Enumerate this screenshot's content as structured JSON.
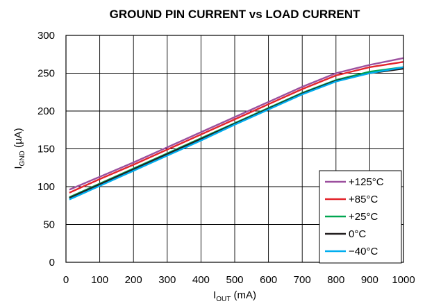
{
  "chart_data": {
    "type": "line",
    "title": "GROUND PIN CURRENT vs LOAD CURRENT",
    "xlabel": {
      "main": "I",
      "sub": "OUT",
      "unit": " (mA)"
    },
    "ylabel": {
      "main": "I",
      "sub": "GND",
      "unit": " (µA)"
    },
    "xlim": [
      0,
      1000
    ],
    "ylim": [
      0,
      300
    ],
    "xticks": [
      "0",
      "100",
      "200",
      "300",
      "400",
      "500",
      "600",
      "700",
      "800",
      "900",
      "1000"
    ],
    "yticks": [
      "0",
      "50",
      "100",
      "150",
      "200",
      "250",
      "300"
    ],
    "grid": true,
    "legend_position": "bottom-right",
    "x": [
      10,
      100,
      200,
      300,
      400,
      500,
      600,
      700,
      800,
      900,
      1000
    ],
    "series": [
      {
        "name": "+125°C",
        "color": "#9b4f9e",
        "values": [
          96,
          113,
          132,
          152,
          172,
          192,
          212,
          232,
          250,
          261,
          270
        ]
      },
      {
        "name": "+85°C",
        "color": "#e3242b",
        "values": [
          92,
          110,
          129,
          149,
          169,
          189,
          209,
          229,
          247,
          258,
          265
        ]
      },
      {
        "name": "+25°C",
        "color": "#00a651",
        "values": [
          86,
          104,
          124,
          144,
          164,
          184,
          204,
          224,
          241,
          252,
          258
        ]
      },
      {
        "name": "0°C",
        "color": "#231f20",
        "values": [
          85,
          103,
          123,
          143,
          163,
          183,
          203,
          223,
          240,
          250,
          256
        ]
      },
      {
        "name": "−40°C",
        "color": "#00aeef",
        "values": [
          83,
          101,
          121,
          141,
          161,
          182,
          202,
          222,
          239,
          250,
          258
        ]
      }
    ]
  }
}
